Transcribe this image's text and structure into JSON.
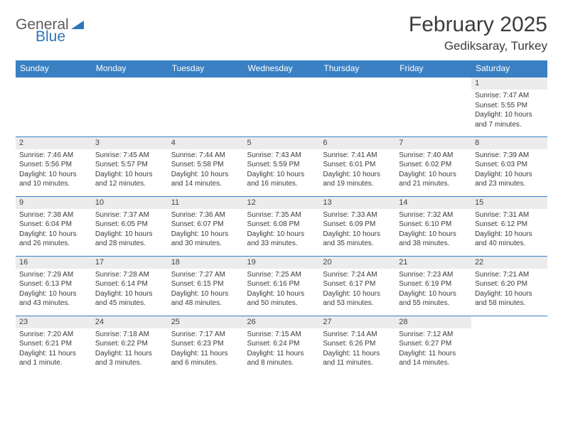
{
  "logo": {
    "part1": "General",
    "part2": "Blue"
  },
  "title": "February 2025",
  "location": "Gediksaray, Turkey",
  "colors": {
    "header_bg": "#3a80c3",
    "header_text": "#ffffff",
    "rule": "#3a80c3",
    "daynum_bg": "#ececec",
    "text": "#3b3b3b",
    "logo_gray": "#5a5a5a",
    "logo_blue": "#2f76b8",
    "page_bg": "#ffffff"
  },
  "typography": {
    "title_fontsize": 30,
    "location_fontsize": 17,
    "header_fontsize": 12,
    "daynum_fontsize": 11,
    "body_fontsize": 10
  },
  "weekdays": [
    "Sunday",
    "Monday",
    "Tuesday",
    "Wednesday",
    "Thursday",
    "Friday",
    "Saturday"
  ],
  "weeks": [
    [
      null,
      null,
      null,
      null,
      null,
      null,
      {
        "n": "1",
        "sr": "Sunrise: 7:47 AM",
        "ss": "Sunset: 5:55 PM",
        "dl": "Daylight: 10 hours and 7 minutes."
      }
    ],
    [
      {
        "n": "2",
        "sr": "Sunrise: 7:46 AM",
        "ss": "Sunset: 5:56 PM",
        "dl": "Daylight: 10 hours and 10 minutes."
      },
      {
        "n": "3",
        "sr": "Sunrise: 7:45 AM",
        "ss": "Sunset: 5:57 PM",
        "dl": "Daylight: 10 hours and 12 minutes."
      },
      {
        "n": "4",
        "sr": "Sunrise: 7:44 AM",
        "ss": "Sunset: 5:58 PM",
        "dl": "Daylight: 10 hours and 14 minutes."
      },
      {
        "n": "5",
        "sr": "Sunrise: 7:43 AM",
        "ss": "Sunset: 5:59 PM",
        "dl": "Daylight: 10 hours and 16 minutes."
      },
      {
        "n": "6",
        "sr": "Sunrise: 7:41 AM",
        "ss": "Sunset: 6:01 PM",
        "dl": "Daylight: 10 hours and 19 minutes."
      },
      {
        "n": "7",
        "sr": "Sunrise: 7:40 AM",
        "ss": "Sunset: 6:02 PM",
        "dl": "Daylight: 10 hours and 21 minutes."
      },
      {
        "n": "8",
        "sr": "Sunrise: 7:39 AM",
        "ss": "Sunset: 6:03 PM",
        "dl": "Daylight: 10 hours and 23 minutes."
      }
    ],
    [
      {
        "n": "9",
        "sr": "Sunrise: 7:38 AM",
        "ss": "Sunset: 6:04 PM",
        "dl": "Daylight: 10 hours and 26 minutes."
      },
      {
        "n": "10",
        "sr": "Sunrise: 7:37 AM",
        "ss": "Sunset: 6:05 PM",
        "dl": "Daylight: 10 hours and 28 minutes."
      },
      {
        "n": "11",
        "sr": "Sunrise: 7:36 AM",
        "ss": "Sunset: 6:07 PM",
        "dl": "Daylight: 10 hours and 30 minutes."
      },
      {
        "n": "12",
        "sr": "Sunrise: 7:35 AM",
        "ss": "Sunset: 6:08 PM",
        "dl": "Daylight: 10 hours and 33 minutes."
      },
      {
        "n": "13",
        "sr": "Sunrise: 7:33 AM",
        "ss": "Sunset: 6:09 PM",
        "dl": "Daylight: 10 hours and 35 minutes."
      },
      {
        "n": "14",
        "sr": "Sunrise: 7:32 AM",
        "ss": "Sunset: 6:10 PM",
        "dl": "Daylight: 10 hours and 38 minutes."
      },
      {
        "n": "15",
        "sr": "Sunrise: 7:31 AM",
        "ss": "Sunset: 6:12 PM",
        "dl": "Daylight: 10 hours and 40 minutes."
      }
    ],
    [
      {
        "n": "16",
        "sr": "Sunrise: 7:29 AM",
        "ss": "Sunset: 6:13 PM",
        "dl": "Daylight: 10 hours and 43 minutes."
      },
      {
        "n": "17",
        "sr": "Sunrise: 7:28 AM",
        "ss": "Sunset: 6:14 PM",
        "dl": "Daylight: 10 hours and 45 minutes."
      },
      {
        "n": "18",
        "sr": "Sunrise: 7:27 AM",
        "ss": "Sunset: 6:15 PM",
        "dl": "Daylight: 10 hours and 48 minutes."
      },
      {
        "n": "19",
        "sr": "Sunrise: 7:25 AM",
        "ss": "Sunset: 6:16 PM",
        "dl": "Daylight: 10 hours and 50 minutes."
      },
      {
        "n": "20",
        "sr": "Sunrise: 7:24 AM",
        "ss": "Sunset: 6:17 PM",
        "dl": "Daylight: 10 hours and 53 minutes."
      },
      {
        "n": "21",
        "sr": "Sunrise: 7:23 AM",
        "ss": "Sunset: 6:19 PM",
        "dl": "Daylight: 10 hours and 55 minutes."
      },
      {
        "n": "22",
        "sr": "Sunrise: 7:21 AM",
        "ss": "Sunset: 6:20 PM",
        "dl": "Daylight: 10 hours and 58 minutes."
      }
    ],
    [
      {
        "n": "23",
        "sr": "Sunrise: 7:20 AM",
        "ss": "Sunset: 6:21 PM",
        "dl": "Daylight: 11 hours and 1 minute."
      },
      {
        "n": "24",
        "sr": "Sunrise: 7:18 AM",
        "ss": "Sunset: 6:22 PM",
        "dl": "Daylight: 11 hours and 3 minutes."
      },
      {
        "n": "25",
        "sr": "Sunrise: 7:17 AM",
        "ss": "Sunset: 6:23 PM",
        "dl": "Daylight: 11 hours and 6 minutes."
      },
      {
        "n": "26",
        "sr": "Sunrise: 7:15 AM",
        "ss": "Sunset: 6:24 PM",
        "dl": "Daylight: 11 hours and 8 minutes."
      },
      {
        "n": "27",
        "sr": "Sunrise: 7:14 AM",
        "ss": "Sunset: 6:26 PM",
        "dl": "Daylight: 11 hours and 11 minutes."
      },
      {
        "n": "28",
        "sr": "Sunrise: 7:12 AM",
        "ss": "Sunset: 6:27 PM",
        "dl": "Daylight: 11 hours and 14 minutes."
      },
      null
    ]
  ]
}
